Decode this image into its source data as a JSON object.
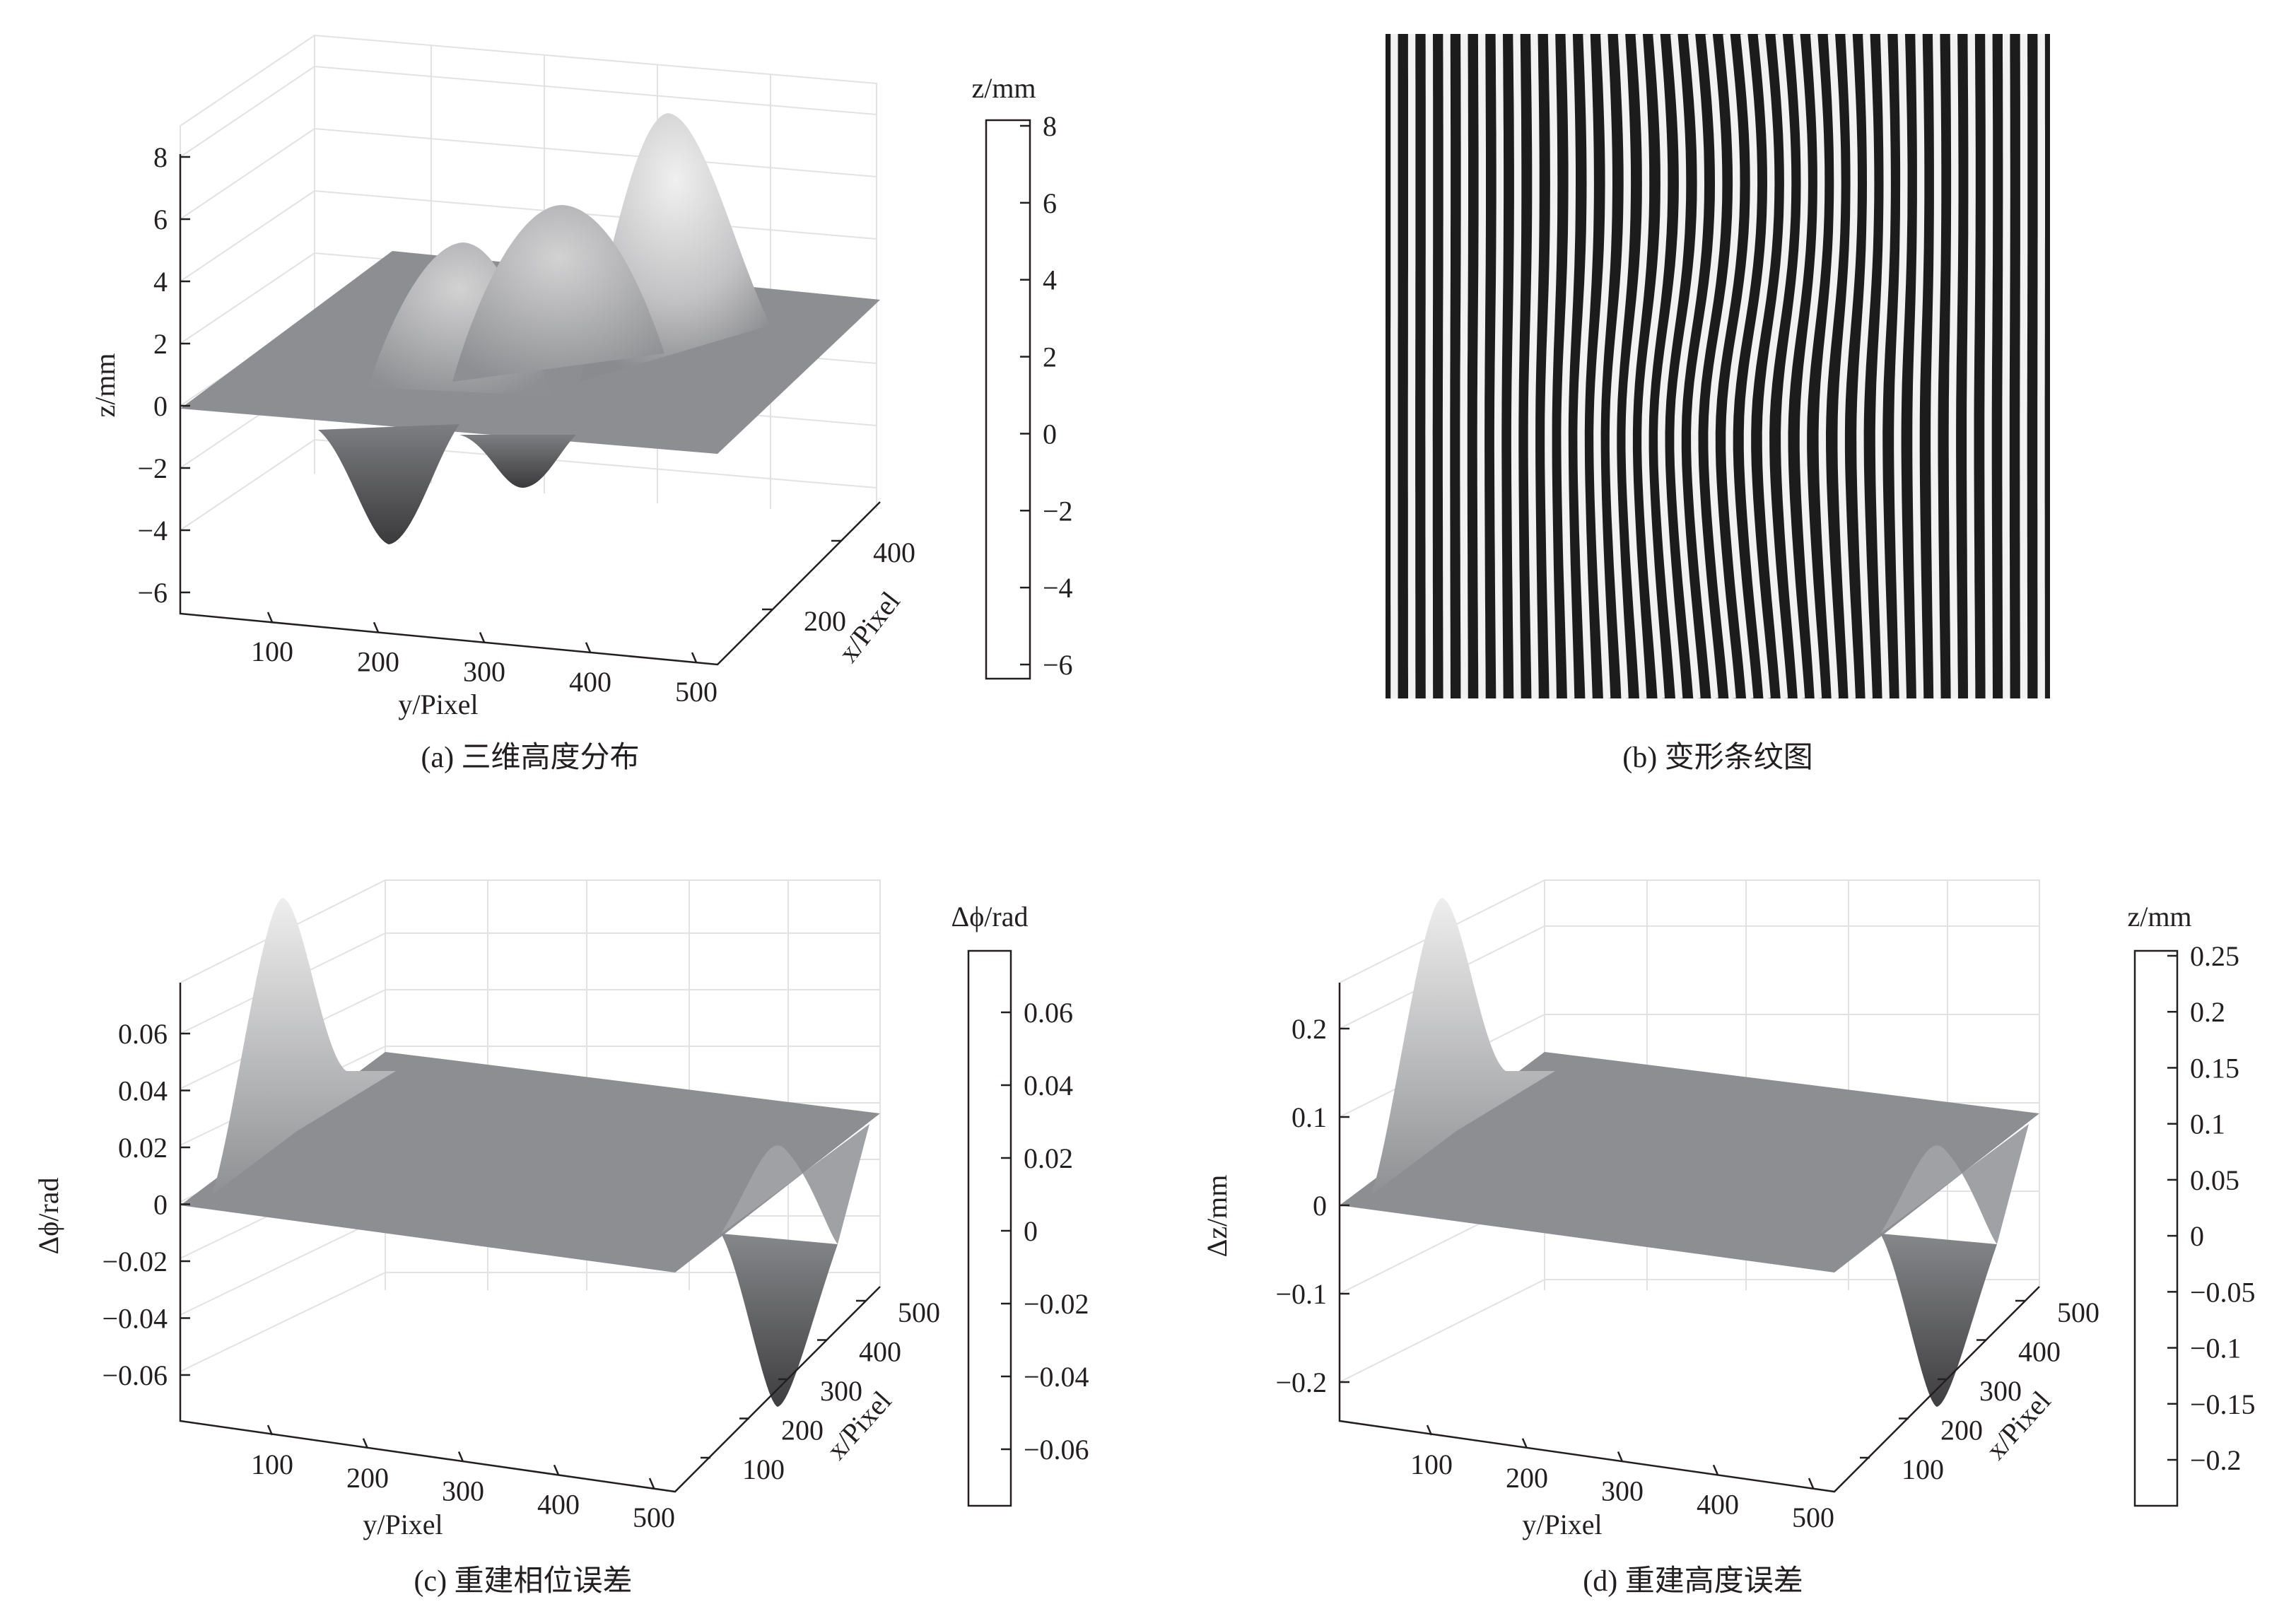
{
  "figure": {
    "panels": [
      {
        "id": "a",
        "caption": "(a) 三维高度分布"
      },
      {
        "id": "b",
        "caption": "(b) 变形条纹图"
      },
      {
        "id": "c",
        "caption": "(c) 重建相位误差"
      },
      {
        "id": "d",
        "caption": "(d) 重建高度误差"
      }
    ]
  },
  "chart_data": [
    {
      "panel": "a",
      "type": "surface3d",
      "caption": "(a) 三维高度分布",
      "ylabel_axis": "y/Pixel",
      "xlabel_axis": "x/Pixel",
      "zlabel": "z/mm",
      "z_ticks": [
        "8",
        "6",
        "4",
        "2",
        "0",
        "−2",
        "−4",
        "−6"
      ],
      "y_ticks": [
        "100",
        "200",
        "300",
        "400",
        "500"
      ],
      "x_ticks": [
        "200",
        "400"
      ],
      "zlim": [
        -6.5,
        8.5
      ],
      "peaks": [
        {
          "y": 460,
          "x": 300,
          "z": 8.2
        },
        {
          "y": 300,
          "x": 200,
          "z": 5.0
        },
        {
          "y": 360,
          "x": 300,
          "z": 5.2
        },
        {
          "y": 230,
          "x": 120,
          "z": -4.3
        },
        {
          "y": 320,
          "x": 80,
          "z": -2.0
        }
      ],
      "colorbar": {
        "label": "z/mm",
        "ticks": [
          "8",
          "6",
          "4",
          "2",
          "0",
          "−2",
          "−4",
          "−6"
        ],
        "range": [
          -6.5,
          8.2
        ]
      }
    },
    {
      "panel": "b",
      "type": "fringe_image",
      "caption": "(b) 变形条纹图",
      "fringe_count": 38,
      "grayscale": true
    },
    {
      "panel": "c",
      "type": "surface3d",
      "caption": "(c) 重建相位误差",
      "ylabel_axis": "y/Pixel",
      "xlabel_axis": "x/Pixel",
      "zlabel": "Δϕ/rad",
      "z_ticks": [
        "0.06",
        "0.04",
        "0.02",
        "0",
        "−0.02",
        "−0.04",
        "−0.06"
      ],
      "y_ticks": [
        "100",
        "200",
        "300",
        "400",
        "500"
      ],
      "x_ticks": [
        "100",
        "200",
        "300",
        "400",
        "500"
      ],
      "zlim": [
        -0.075,
        0.08
      ],
      "peaks": [
        {
          "location": "near y≈50, x≈500",
          "z": 0.078
        },
        {
          "location": "near y≈500, x≈100",
          "z": -0.075
        }
      ],
      "colorbar": {
        "label": "Δϕ/rad",
        "ticks": [
          "0.06",
          "0.04",
          "0.02",
          "0",
          "−0.02",
          "−0.04",
          "−0.06"
        ],
        "range": [
          -0.078,
          0.078
        ]
      }
    },
    {
      "panel": "d",
      "type": "surface3d",
      "caption": "(d) 重建高度误差",
      "ylabel_axis": "y/Pixel",
      "xlabel_axis": "x/Pixel",
      "zlabel": "Δz/mm",
      "z_ticks": [
        "0.2",
        "0.1",
        "0",
        "−0.1",
        "−0.2"
      ],
      "y_ticks": [
        "100",
        "200",
        "300",
        "400",
        "500"
      ],
      "x_ticks": [
        "100",
        "200",
        "300",
        "400",
        "500"
      ],
      "zlim": [
        -0.24,
        0.26
      ],
      "peaks": [
        {
          "location": "near y≈50, x≈500",
          "z": 0.25
        },
        {
          "location": "near y≈500, x≈100",
          "z": -0.24
        }
      ],
      "colorbar": {
        "label": "z/mm",
        "ticks": [
          "0.25",
          "0.2",
          "0.15",
          "0.1",
          "0.05",
          "0",
          "−0.05",
          "−0.1",
          "−0.15",
          "−0.2"
        ],
        "range": [
          -0.245,
          0.25
        ]
      }
    }
  ]
}
